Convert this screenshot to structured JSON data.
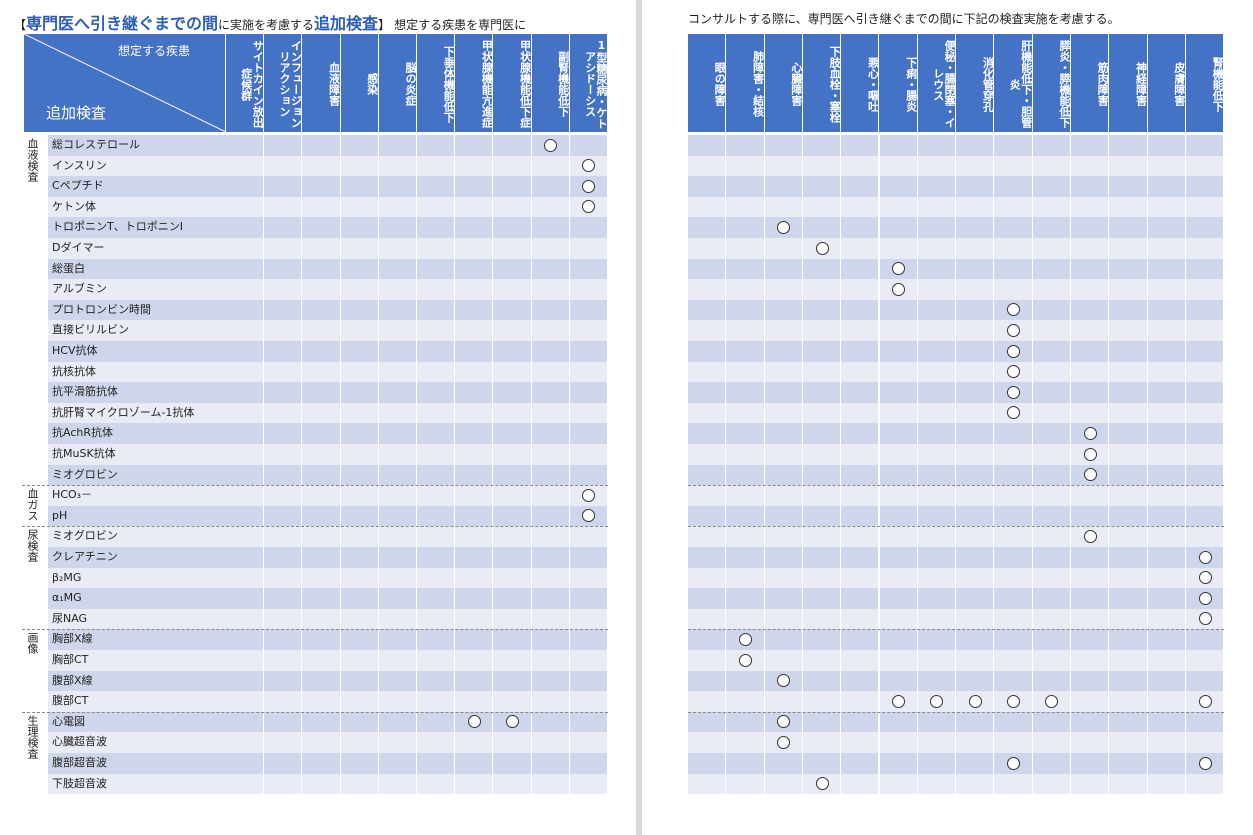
{
  "left_heading": {
    "open_bracket": "【",
    "part1": "専門医へ引き継ぐまでの間",
    "part2": "に実施を考慮する",
    "part3": "追加検査",
    "close_bracket": "】",
    "part4": "想定する疾患を専門医に"
  },
  "right_heading": "コンサルトする際に、専門医へ引き継ぐまでの間に下記の検査実施を考慮する。",
  "diagonal_header": {
    "top": "想定する疾患",
    "bottom": "追加検査"
  },
  "left_columns": [
    "サイトカイン放出症候群",
    "インフュージョンリアクション",
    "血液障害",
    "感染",
    "脳の炎症",
    "下垂体機能低下",
    "甲状腺機能亢進症",
    "甲状腺機能低下症",
    "副腎機能低下",
    "1型糖尿病・ケトアシドーシス"
  ],
  "right_columns": [
    "眼の障害",
    "肺障害・結核",
    "心臓障害",
    "下肢血栓・塞栓",
    "悪心・嘔吐",
    "下痢・腸炎",
    "便秘・腸閉塞・イレウス",
    "消化管穿孔",
    "肝機能低下・胆管炎",
    "膵炎・膵機能低下",
    "筋肉障害",
    "神経障害",
    "皮膚障害",
    "腎機能低下"
  ],
  "categories": [
    {
      "label": "血液検査",
      "start": 0,
      "end": 16
    },
    {
      "label": "血ガス",
      "start": 17,
      "end": 18
    },
    {
      "label": "尿検査",
      "start": 19,
      "end": 23
    },
    {
      "label": "画像",
      "start": 24,
      "end": 27
    },
    {
      "label": "生理検査",
      "start": 28,
      "end": 31
    }
  ],
  "rows": [
    {
      "test": "総コレステロール",
      "left": [
        8
      ],
      "right": []
    },
    {
      "test": "インスリン",
      "left": [
        9
      ],
      "right": []
    },
    {
      "test": "Cペプチド",
      "left": [
        9
      ],
      "right": []
    },
    {
      "test": "ケトン体",
      "left": [
        9
      ],
      "right": []
    },
    {
      "test": "トロポニンT、トロポニンI",
      "left": [],
      "right": [
        2
      ]
    },
    {
      "test": "Dダイマー",
      "left": [],
      "right": [
        3
      ]
    },
    {
      "test": "総蛋白",
      "left": [],
      "right": [
        5
      ]
    },
    {
      "test": "アルブミン",
      "left": [],
      "right": [
        5
      ]
    },
    {
      "test": "プロトロンビン時間",
      "left": [],
      "right": [
        8
      ]
    },
    {
      "test": "直接ビリルビン",
      "left": [],
      "right": [
        8
      ]
    },
    {
      "test": "HCV抗体",
      "left": [],
      "right": [
        8
      ]
    },
    {
      "test": "抗核抗体",
      "left": [],
      "right": [
        8
      ]
    },
    {
      "test": "抗平滑筋抗体",
      "left": [],
      "right": [
        8
      ]
    },
    {
      "test": "抗肝腎マイクロゾーム-1抗体",
      "left": [],
      "right": [
        8
      ]
    },
    {
      "test": "抗AchR抗体",
      "left": [],
      "right": [
        10
      ]
    },
    {
      "test": "抗MuSK抗体",
      "left": [],
      "right": [
        10
      ]
    },
    {
      "test": "ミオグロビン",
      "left": [],
      "right": [
        10
      ]
    },
    {
      "test": "HCO₃－",
      "left": [
        9
      ],
      "right": []
    },
    {
      "test": "pH",
      "left": [
        9
      ],
      "right": []
    },
    {
      "test": "ミオグロビン",
      "left": [],
      "right": [
        10
      ]
    },
    {
      "test": "クレアチニン",
      "left": [],
      "right": [
        13
      ]
    },
    {
      "test": "β₂MG",
      "left": [],
      "right": [
        13
      ]
    },
    {
      "test": "α₁MG",
      "left": [],
      "right": [
        13
      ]
    },
    {
      "test": "尿NAG",
      "left": [],
      "right": [
        13
      ]
    },
    {
      "test": "胸部X線",
      "left": [],
      "right": [
        1
      ]
    },
    {
      "test": "胸部CT",
      "left": [],
      "right": [
        1
      ]
    },
    {
      "test": "腹部X線",
      "left": [],
      "right": [
        2
      ]
    },
    {
      "test": "腹部CT",
      "left": [],
      "right": [
        5,
        6,
        7,
        8,
        9,
        13
      ]
    },
    {
      "test": "心電図",
      "left": [
        6,
        7
      ],
      "right": [
        2
      ]
    },
    {
      "test": "心臓超音波",
      "left": [],
      "right": [
        2
      ]
    },
    {
      "test": "腹部超音波",
      "left": [],
      "right": [
        8,
        13
      ]
    },
    {
      "test": "下肢超音波",
      "left": [],
      "right": [
        3
      ]
    }
  ],
  "colors": {
    "header": "#4472c4",
    "row_dark": "#cfd5ea",
    "row_light": "#e9ebf5",
    "title": "#2e5fb8"
  }
}
